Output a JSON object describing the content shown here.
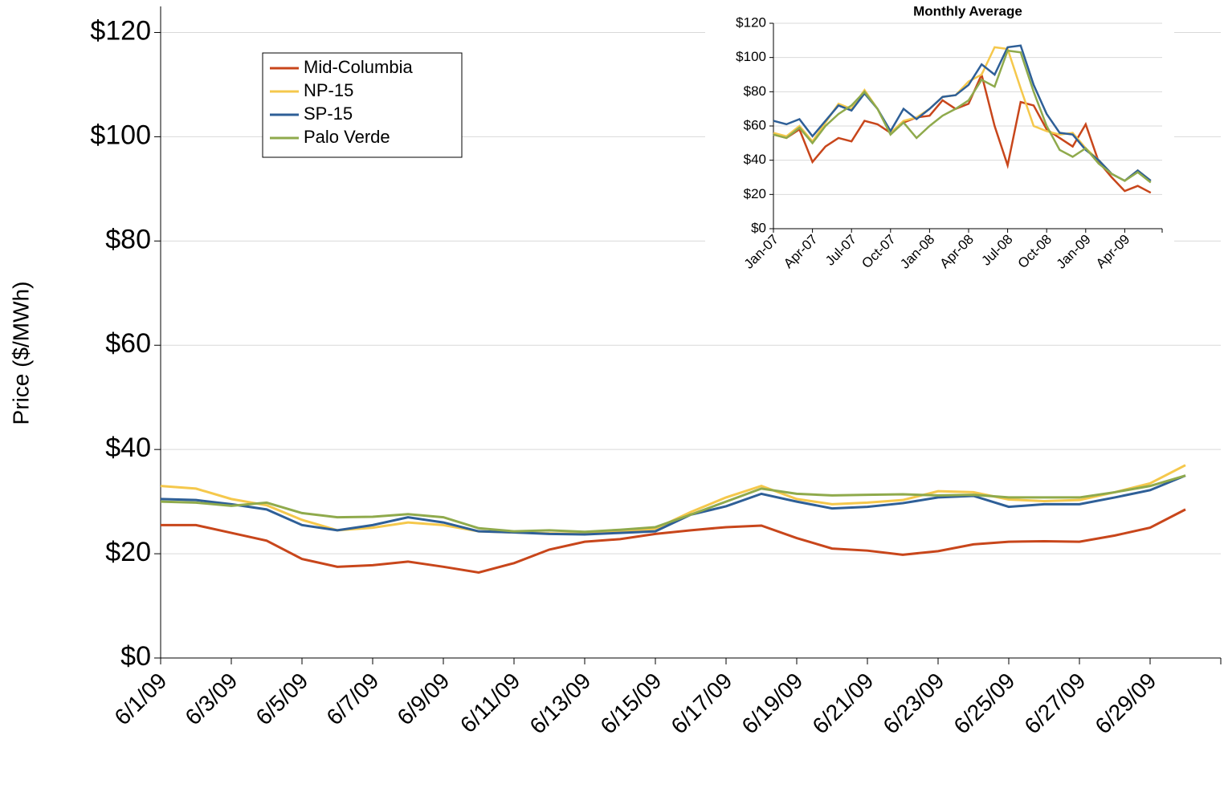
{
  "chart_data": [
    {
      "type": "line",
      "y_label": "Price ($/MWh)",
      "grid": true,
      "legend": "upper left",
      "categories": [
        "6/1/09",
        null,
        "6/3/09",
        null,
        "6/5/09",
        null,
        "6/7/09",
        null,
        "6/9/09",
        null,
        "6/11/09",
        null,
        "6/13/09",
        null,
        "6/15/09",
        null,
        "6/17/09",
        null,
        "6/19/09",
        null,
        "6/21/09",
        null,
        "6/23/09",
        null,
        "6/25/09",
        null,
        "6/27/09",
        null,
        "6/29/09",
        null
      ],
      "ylim": [
        0,
        125
      ],
      "yticks": [
        {
          "value": 0,
          "label": "$0"
        },
        {
          "value": 20,
          "label": "$20"
        },
        {
          "value": 40,
          "label": "$40"
        },
        {
          "value": 60,
          "label": "$60"
        },
        {
          "value": 80,
          "label": "$80"
        },
        {
          "value": 100,
          "label": "$100"
        },
        {
          "value": 120,
          "label": "$120"
        }
      ],
      "series": [
        {
          "name": "Mid-Columbia",
          "color": "#c8461b",
          "values": [
            25.5,
            25.5,
            24,
            22.5,
            19,
            17.5,
            17.8,
            18.5,
            17.5,
            16.4,
            18.2,
            20.8,
            22.3,
            22.8,
            23.8,
            24.5,
            25.1,
            25.4,
            23,
            21,
            20.6,
            19.8,
            20.5,
            21.8,
            22.3,
            22.4,
            22.3,
            23.5,
            25,
            28.5
          ]
        },
        {
          "name": "NP-15",
          "color": "#f5c84c",
          "values": [
            33,
            32.5,
            30.5,
            29.3,
            26.5,
            24.5,
            25,
            26,
            25.5,
            24.3,
            24.1,
            23.9,
            23.8,
            24.2,
            24.8,
            28,
            30.8,
            33,
            30.5,
            29.5,
            29.8,
            30.3,
            32,
            31.8,
            30.4,
            30.1,
            30.3,
            31.8,
            33.5,
            37
          ]
        },
        {
          "name": "SP-15",
          "color": "#2e5f97",
          "values": [
            30.5,
            30.3,
            29.5,
            28.5,
            25.5,
            24.5,
            25.5,
            27,
            26,
            24.3,
            24.1,
            23.8,
            23.7,
            24,
            24.3,
            27.5,
            29.1,
            31.5,
            30,
            28.7,
            29,
            29.7,
            30.8,
            31.1,
            29,
            29.5,
            29.5,
            30.8,
            32.2,
            35
          ]
        },
        {
          "name": "Palo Verde",
          "color": "#8faa4c",
          "values": [
            30,
            29.8,
            29.2,
            29.8,
            27.8,
            27,
            27.1,
            27.6,
            27,
            24.9,
            24.3,
            24.5,
            24.2,
            24.6,
            25.1,
            27.5,
            30,
            32.5,
            31.5,
            31.2,
            31.3,
            31.4,
            31.2,
            31.3,
            30.8,
            30.8,
            30.8,
            31.8,
            33,
            35
          ]
        }
      ]
    },
    {
      "type": "line",
      "title": "Monthly Average",
      "grid": true,
      "categories": [
        "Jan-07",
        null,
        null,
        "Apr-07",
        null,
        null,
        "Jul-07",
        null,
        null,
        "Oct-07",
        null,
        null,
        "Jan-08",
        null,
        null,
        "Apr-08",
        null,
        null,
        "Jul-08",
        null,
        null,
        "Oct-08",
        null,
        null,
        "Jan-09",
        null,
        null,
        "Apr-09",
        null,
        null
      ],
      "ylim": [
        0,
        120
      ],
      "yticks": [
        {
          "value": 0,
          "label": "$0"
        },
        {
          "value": 20,
          "label": "$20"
        },
        {
          "value": 40,
          "label": "$40"
        },
        {
          "value": 60,
          "label": "$60"
        },
        {
          "value": 80,
          "label": "$80"
        },
        {
          "value": 100,
          "label": "$100"
        },
        {
          "value": 120,
          "label": "$120"
        }
      ],
      "series": [
        {
          "color": "#c8461b",
          "values": [
            55,
            53,
            58,
            39,
            48,
            53,
            51,
            63,
            61,
            56,
            62,
            65,
            66,
            75,
            70,
            73,
            90,
            60,
            37,
            74,
            72,
            58,
            53,
            48,
            61,
            39,
            30,
            22,
            25,
            21
          ]
        },
        {
          "color": "#f5c84c",
          "values": [
            56,
            54,
            60,
            51,
            62,
            73,
            70,
            81,
            70,
            56,
            63,
            65,
            70,
            77,
            78,
            86,
            90,
            106,
            105,
            82,
            60,
            57,
            55,
            56,
            47,
            40,
            32,
            28,
            34,
            28
          ]
        },
        {
          "color": "#2e5f97",
          "values": [
            63,
            61,
            64,
            54,
            63,
            72,
            69,
            79,
            70,
            57,
            70,
            64,
            70,
            77,
            78,
            84,
            96,
            90,
            106,
            107,
            84,
            67,
            56,
            55,
            46,
            40,
            32,
            28,
            34,
            28
          ]
        },
        {
          "color": "#8faa4c",
          "values": [
            55,
            53,
            59,
            50,
            60,
            67,
            72,
            80,
            70,
            55,
            62,
            53,
            60,
            66,
            70,
            75,
            87,
            83,
            104,
            103,
            80,
            60,
            46,
            42,
            47,
            38,
            32,
            28,
            33,
            27
          ]
        }
      ]
    }
  ]
}
